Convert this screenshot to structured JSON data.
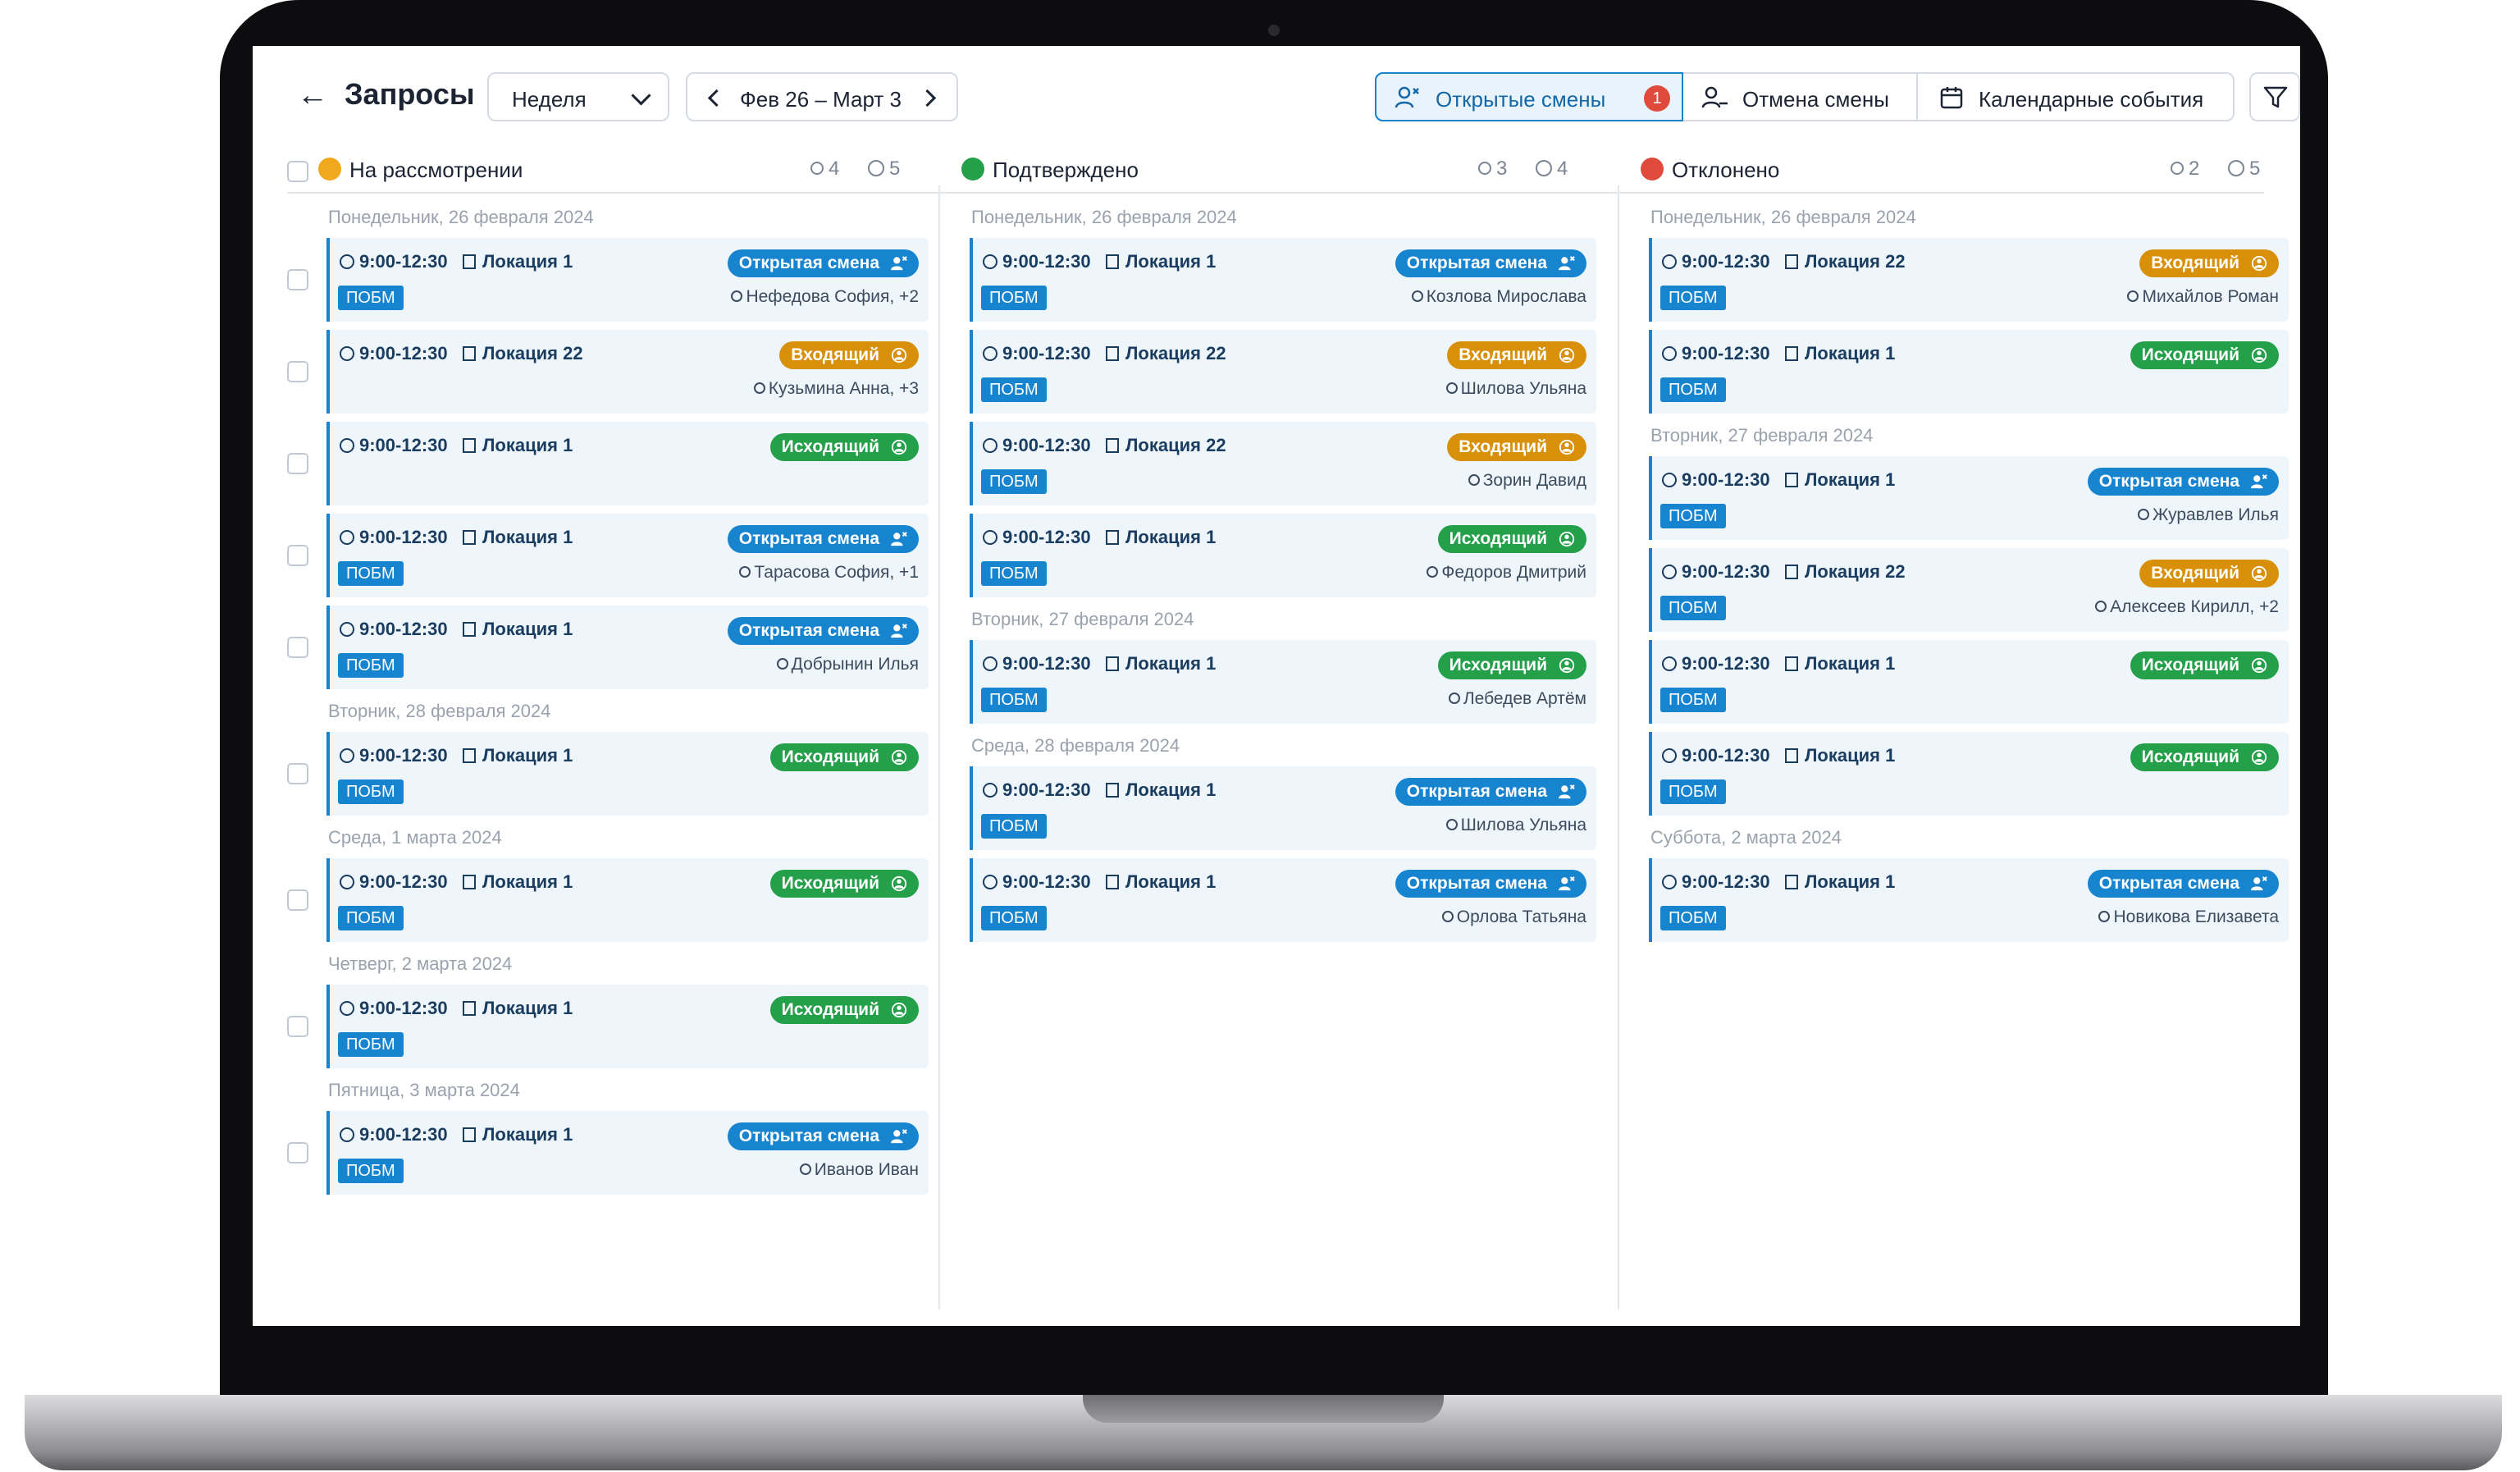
{
  "header": {
    "title": "Запросы",
    "period_select": "Неделя",
    "date_range": "Фев 26 – Март 3",
    "tabs": [
      {
        "label": "Открытые смены",
        "badge": "1",
        "active": true
      },
      {
        "label": "Отмена смены"
      },
      {
        "label": "Календарные события"
      }
    ]
  },
  "columns": [
    {
      "name": "На рассмотрении",
      "status_color": "#f0a81c",
      "people_count": "4",
      "swap_count": "5",
      "groups": [
        {
          "day": "Понедельник, 26 февраля 2024",
          "cards": [
            {
              "time": "9:00-12:30",
              "loc": "Локация 1",
              "tag": "Открытая смена",
              "kind": "open",
              "pobm": "ПОБМ",
              "person": "Нефедова София, +2"
            },
            {
              "time": "9:00-12:30",
              "loc": "Локация 22",
              "tag": "Входящий",
              "kind": "in",
              "pobm": "",
              "person": "Кузьмина Анна, +3"
            },
            {
              "time": "9:00-12:30",
              "loc": "Локация 1",
              "tag": "Исходящий",
              "kind": "out",
              "pobm": "",
              "person": ""
            },
            {
              "time": "9:00-12:30",
              "loc": "Локация 1",
              "tag": "Открытая смена",
              "kind": "open",
              "pobm": "ПОБМ",
              "person": "Тарасова София, +1"
            },
            {
              "time": "9:00-12:30",
              "loc": "Локация 1",
              "tag": "Открытая смена",
              "kind": "open",
              "pobm": "ПОБМ",
              "person": "Добрынин Илья"
            }
          ]
        },
        {
          "day": "Вторник, 28 февраля 2024",
          "cards": [
            {
              "time": "9:00-12:30",
              "loc": "Локация 1",
              "tag": "Исходящий",
              "kind": "out",
              "pobm": "ПОБМ",
              "person": ""
            }
          ]
        },
        {
          "day": "Среда, 1 марта 2024",
          "cards": [
            {
              "time": "9:00-12:30",
              "loc": "Локация 1",
              "tag": "Исходящий",
              "kind": "out",
              "pobm": "ПОБМ",
              "person": ""
            }
          ]
        },
        {
          "day": "Четверг, 2 марта 2024",
          "cards": [
            {
              "time": "9:00-12:30",
              "loc": "Локация 1",
              "tag": "Исходящий",
              "kind": "out",
              "pobm": "ПОБМ",
              "person": ""
            }
          ]
        },
        {
          "day": "Пятница, 3 марта 2024",
          "cards": [
            {
              "time": "9:00-12:30",
              "loc": "Локация 1",
              "tag": "Открытая смена",
              "kind": "open",
              "pobm": "ПОБМ",
              "person": "Иванов Иван"
            }
          ]
        }
      ]
    },
    {
      "name": "Подтверждено",
      "status_color": "#24a04a",
      "people_count": "3",
      "swap_count": "4",
      "groups": [
        {
          "day": "Понедельник, 26 февраля 2024",
          "cards": [
            {
              "time": "9:00-12:30",
              "loc": "Локация 1",
              "tag": "Открытая смена",
              "kind": "open",
              "pobm": "ПОБМ",
              "person": "Козлова Мирослава"
            },
            {
              "time": "9:00-12:30",
              "loc": "Локация 22",
              "tag": "Входящий",
              "kind": "in",
              "pobm": "ПОБМ",
              "person": "Шилова Ульяна"
            },
            {
              "time": "9:00-12:30",
              "loc": "Локация 22",
              "tag": "Входящий",
              "kind": "in",
              "pobm": "ПОБМ",
              "person": "Зорин Давид"
            },
            {
              "time": "9:00-12:30",
              "loc": "Локация 1",
              "tag": "Исходящий",
              "kind": "out",
              "pobm": "ПОБМ",
              "person": "Федоров Дмитрий"
            }
          ]
        },
        {
          "day": "Вторник, 27 февраля 2024",
          "cards": [
            {
              "time": "9:00-12:30",
              "loc": "Локация 1",
              "tag": "Исходящий",
              "kind": "out",
              "pobm": "ПОБМ",
              "person": "Лебедев Артём"
            }
          ]
        },
        {
          "day": "Среда, 28 февраля 2024",
          "cards": [
            {
              "time": "9:00-12:30",
              "loc": "Локация 1",
              "tag": "Открытая смена",
              "kind": "open",
              "pobm": "ПОБМ",
              "person": "Шилова Ульяна"
            },
            {
              "time": "9:00-12:30",
              "loc": "Локация 1",
              "tag": "Открытая смена",
              "kind": "open",
              "pobm": "ПОБМ",
              "person": "Орлова Татьяна"
            }
          ]
        }
      ]
    },
    {
      "name": "Отклонено",
      "status_color": "#e04a3c",
      "people_count": "2",
      "swap_count": "5",
      "groups": [
        {
          "day": "Понедельник, 26 февраля 2024",
          "cards": [
            {
              "time": "9:00-12:30",
              "loc": "Локация 22",
              "tag": "Входящий",
              "kind": "in",
              "pobm": "ПОБМ",
              "person": "Михайлов Роман"
            },
            {
              "time": "9:00-12:30",
              "loc": "Локация 1",
              "tag": "Исходящий",
              "kind": "out",
              "pobm": "ПОБМ",
              "person": ""
            }
          ]
        },
        {
          "day": "Вторник, 27 февраля 2024",
          "cards": [
            {
              "time": "9:00-12:30",
              "loc": "Локация 1",
              "tag": "Открытая смена",
              "kind": "open",
              "pobm": "ПОБМ",
              "person": "Журавлев Илья"
            },
            {
              "time": "9:00-12:30",
              "loc": "Локация 22",
              "tag": "Входящий",
              "kind": "in",
              "pobm": "ПОБМ",
              "person": "Алексеев Кирилл, +2"
            },
            {
              "time": "9:00-12:30",
              "loc": "Локация 1",
              "tag": "Исходящий",
              "kind": "out",
              "pobm": "ПОБМ",
              "person": ""
            },
            {
              "time": "9:00-12:30",
              "loc": "Локация 1",
              "tag": "Исходящий",
              "kind": "out",
              "pobm": "ПОБМ",
              "person": ""
            }
          ]
        },
        {
          "day": "Суббота, 2 марта 2024",
          "cards": [
            {
              "time": "9:00-12:30",
              "loc": "Локация 1",
              "tag": "Открытая смена",
              "kind": "open",
              "pobm": "ПОБМ",
              "person": "Новикова Елизавета"
            }
          ]
        }
      ]
    }
  ],
  "icons": {
    "back": "arrow-left-icon",
    "filter": "filter-icon",
    "clock": "clock-icon",
    "location": "building-icon",
    "person": "user-icon",
    "open_shift": "user-x-icon",
    "swap": "swap-person-icon"
  }
}
